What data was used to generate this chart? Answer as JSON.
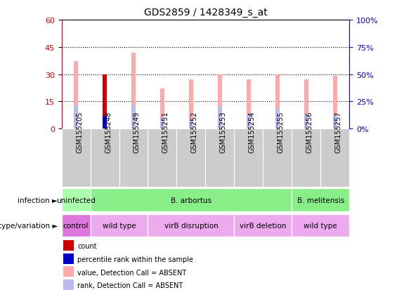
{
  "title": "GDS2859 / 1428349_s_at",
  "samples": [
    "GSM155205",
    "GSM155248",
    "GSM155249",
    "GSM155251",
    "GSM155252",
    "GSM155253",
    "GSM155254",
    "GSM155255",
    "GSM155256",
    "GSM155257"
  ],
  "pink_bar_values": [
    37,
    0,
    42,
    22,
    27,
    30,
    27,
    30,
    27,
    29
  ],
  "light_blue_bar_values": [
    13,
    0,
    13,
    6,
    5,
    12,
    8,
    11,
    8,
    8
  ],
  "red_bar_values": [
    0,
    30,
    0,
    0,
    0,
    0,
    0,
    0,
    0,
    0
  ],
  "blue_bar_values": [
    0,
    7,
    0,
    0,
    0,
    0,
    0,
    0,
    0,
    0
  ],
  "left_ylim": [
    0,
    60
  ],
  "left_yticks": [
    0,
    15,
    30,
    45,
    60
  ],
  "right_ylim": [
    0,
    100
  ],
  "right_yticks": [
    0,
    25,
    50,
    75,
    100
  ],
  "left_tick_color": "#cc0000",
  "right_tick_color": "#0000cc",
  "infection_groups": [
    {
      "label": "uninfected",
      "start": 0,
      "end": 1,
      "color": "#aaffaa"
    },
    {
      "label": "B. arbortus",
      "start": 1,
      "end": 8,
      "color": "#88ee88"
    },
    {
      "label": "B. melitensis",
      "start": 8,
      "end": 10,
      "color": "#88ee88"
    }
  ],
  "genotype_groups": [
    {
      "label": "control",
      "start": 0,
      "end": 1,
      "color": "#dd77dd"
    },
    {
      "label": "wild type",
      "start": 1,
      "end": 3,
      "color": "#eeaaee"
    },
    {
      "label": "virB disruption",
      "start": 3,
      "end": 6,
      "color": "#eeaaee"
    },
    {
      "label": "virB deletion",
      "start": 6,
      "end": 8,
      "color": "#eeaaee"
    },
    {
      "label": "wild type",
      "start": 8,
      "end": 10,
      "color": "#eeaaee"
    }
  ],
  "legend_items": [
    {
      "color": "#cc0000",
      "label": "count"
    },
    {
      "color": "#0000cc",
      "label": "percentile rank within the sample"
    },
    {
      "color": "#ffaaaa",
      "label": "value, Detection Call = ABSENT"
    },
    {
      "color": "#bbbbee",
      "label": "rank, Detection Call = ABSENT"
    }
  ],
  "bar_width": 0.15,
  "pink_color": "#ffaaaa",
  "light_blue_color": "#bbbbee",
  "red_color": "#cc0000",
  "blue_color": "#0000cc",
  "background_color": "#ffffff",
  "plot_bg_color": "#ffffff",
  "xaxis_bg_color": "#cccccc",
  "dotted_line_color": "#000000",
  "dotted_levels": [
    15,
    30,
    45
  ]
}
